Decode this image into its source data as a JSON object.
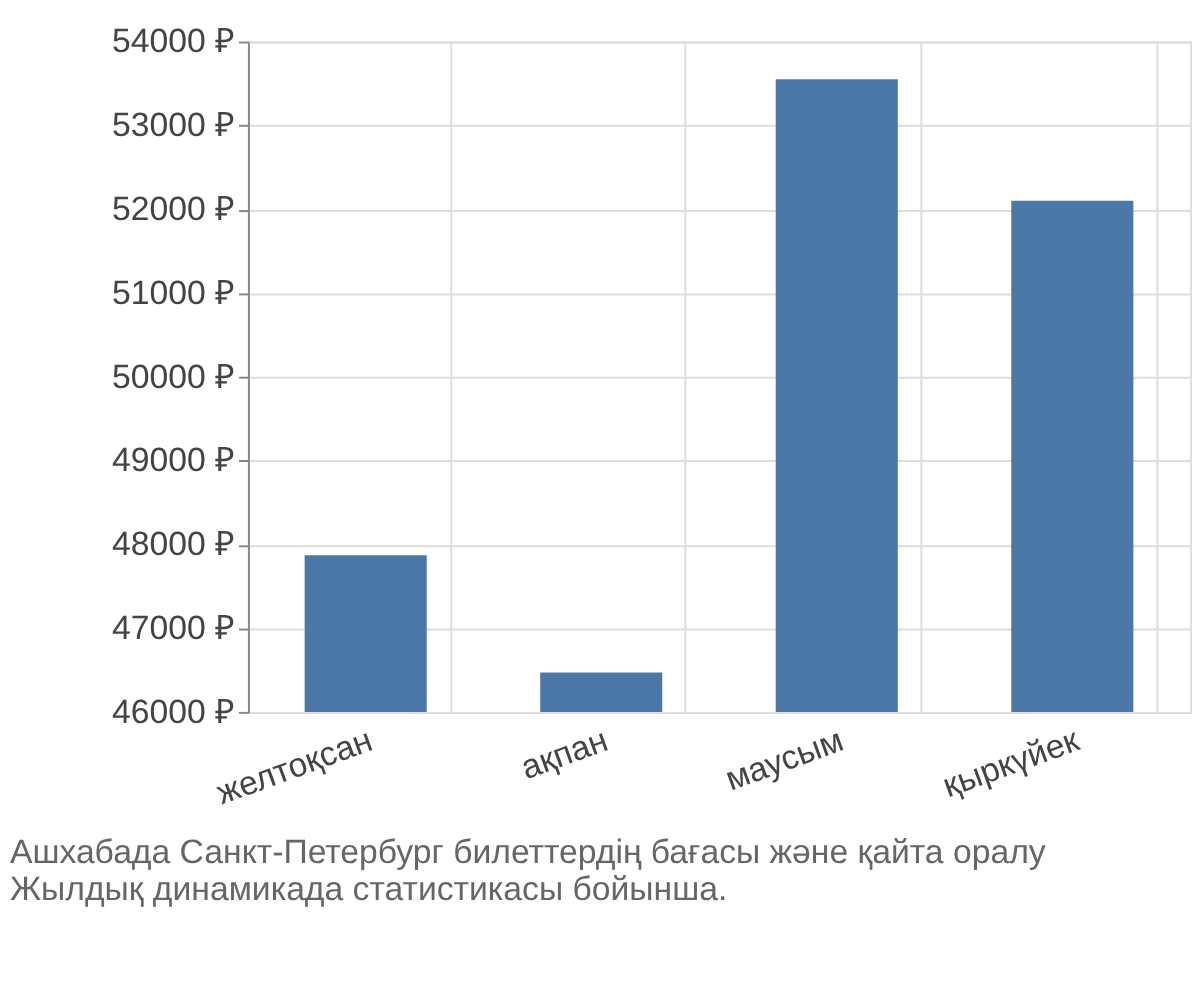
{
  "chart_data": {
    "type": "bar",
    "categories": [
      "желтоқсан",
      "ақпан",
      "маусым",
      "қыркүйек"
    ],
    "values": [
      47870,
      46470,
      53550,
      52100
    ],
    "color": "#4c78a8",
    "ylim": [
      46000,
      54000
    ],
    "yticks": [
      {
        "value": 46000,
        "label": "46000 ₽"
      },
      {
        "value": 47000,
        "label": "47000 ₽"
      },
      {
        "value": 48000,
        "label": "48000 ₽"
      },
      {
        "value": 49000,
        "label": "49000 ₽"
      },
      {
        "value": 50000,
        "label": "50000 ₽"
      },
      {
        "value": 51000,
        "label": "51000 ₽"
      },
      {
        "value": 52000,
        "label": "52000 ₽"
      },
      {
        "value": 53000,
        "label": "53000 ₽"
      },
      {
        "value": 54000,
        "label": "54000 ₽"
      }
    ],
    "grid": true,
    "annotations": [
      "Ашхабада Санкт-Петербург билеттердің бағасы және қайта оралу",
      "Жылдық динамикада статистикасы бойынша."
    ]
  }
}
